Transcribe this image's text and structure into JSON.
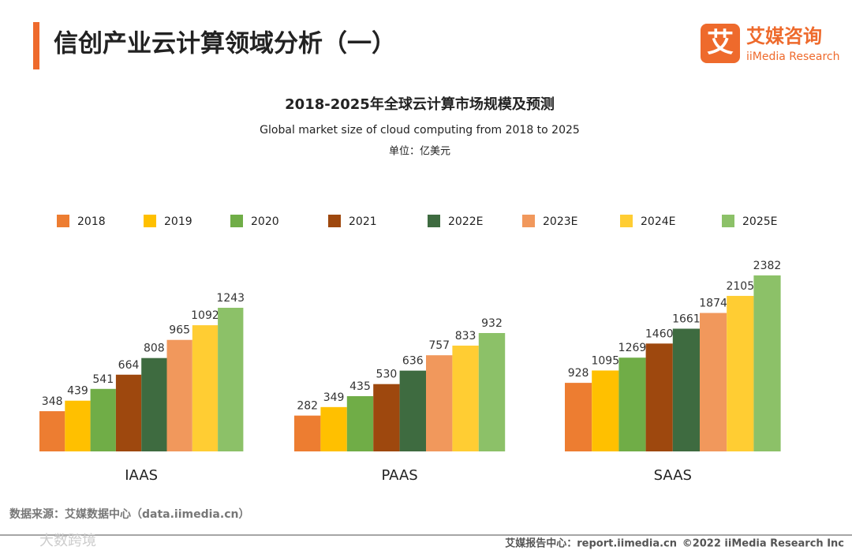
{
  "header": {
    "title": "信创产业云计算领域分析（一）",
    "logo_mark": "艾",
    "logo_name": "艾媒咨询",
    "logo_sub": "iiMedia Research"
  },
  "chart_data": {
    "type": "bar",
    "title": "2018-2025年全球云计算市场规模及预测",
    "subtitle": "Global market size of cloud computing from 2018 to 2025",
    "unit": "单位：亿美元",
    "categories": [
      "IAAS",
      "PAAS",
      "SAAS"
    ],
    "series": [
      {
        "name": "2018",
        "color": "#ed7d31",
        "values": [
          348,
          282,
          928
        ]
      },
      {
        "name": "2019",
        "color": "#ffc000",
        "values": [
          439,
          349,
          1095
        ]
      },
      {
        "name": "2020",
        "color": "#70ad47",
        "values": [
          541,
          435,
          1269
        ]
      },
      {
        "name": "2021",
        "color": "#9e480e",
        "values": [
          664,
          530,
          1460
        ]
      },
      {
        "name": "2022E",
        "color": "#3e6b40",
        "values": [
          808,
          636,
          1661
        ]
      },
      {
        "name": "2023E",
        "color": "#f1985c",
        "values": [
          965,
          757,
          1874
        ]
      },
      {
        "name": "2024E",
        "color": "#ffcd33",
        "values": [
          1092,
          833,
          2105
        ]
      },
      {
        "name": "2025E",
        "color": "#8cc168",
        "values": [
          1243,
          932,
          2382
        ]
      }
    ]
  },
  "footer": {
    "source": "数据来源：艾媒数据中心（data.iimedia.cn）",
    "report": "艾媒报告中心：report.iimedia.cn",
    "copyright": "©2022  iiMedia Research  Inc",
    "watermark": "大数跨境"
  }
}
